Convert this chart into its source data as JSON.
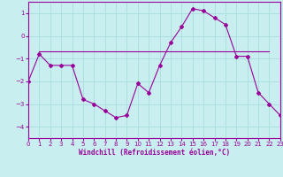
{
  "xlabel": "Windchill (Refroidissement éolien,°C)",
  "bg_color": "#c8eef0",
  "line_color": "#990099",
  "grid_color": "#aadddd",
  "xlim": [
    0,
    23
  ],
  "ylim": [
    -4.5,
    1.5
  ],
  "yticks": [
    -4,
    -3,
    -2,
    -1,
    0,
    1
  ],
  "xticks": [
    0,
    1,
    2,
    3,
    4,
    5,
    6,
    7,
    8,
    9,
    10,
    11,
    12,
    13,
    14,
    15,
    16,
    17,
    18,
    19,
    20,
    21,
    22,
    23
  ],
  "series1_x": [
    0,
    1,
    2,
    3,
    4,
    5,
    6,
    7,
    8,
    9,
    10,
    11,
    12,
    13,
    14,
    15,
    16,
    17,
    18,
    19,
    20,
    21,
    22,
    23
  ],
  "series1_y": [
    -2.0,
    -0.8,
    -1.3,
    -1.3,
    -1.3,
    -2.8,
    -3.0,
    -3.3,
    -3.6,
    -3.5,
    -2.1,
    -2.5,
    -1.3,
    -0.3,
    0.4,
    1.2,
    1.1,
    0.8,
    0.5,
    -0.9,
    -0.9,
    -2.5,
    -3.0,
    -3.5
  ],
  "series2_x": [
    1,
    2,
    3,
    4,
    5,
    6,
    7,
    8,
    9,
    10,
    11,
    12,
    13,
    14,
    15,
    16,
    17,
    18,
    19,
    20,
    21,
    22
  ],
  "series2_y": [
    -0.7,
    -0.7,
    -0.7,
    -0.7,
    -0.7,
    -0.7,
    -0.7,
    -0.7,
    -0.7,
    -0.7,
    -0.7,
    -0.7,
    -0.7,
    -0.7,
    -0.7,
    -0.7,
    -0.7,
    -0.7,
    -0.7,
    -0.7,
    -0.7,
    -0.7
  ]
}
